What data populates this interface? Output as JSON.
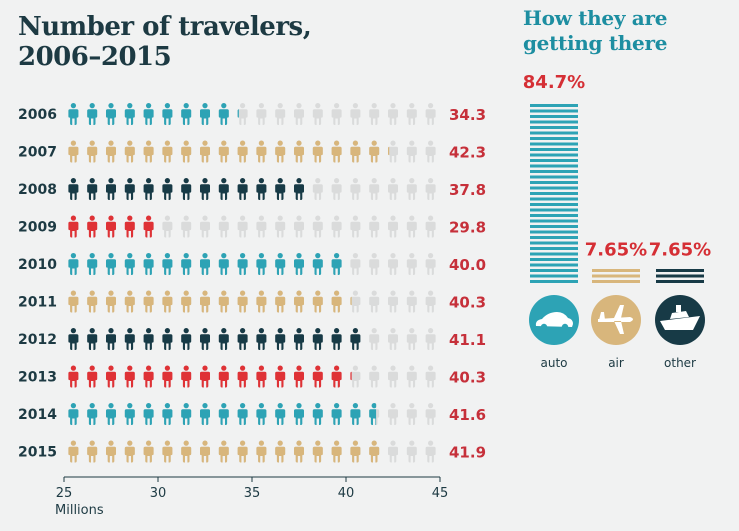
{
  "title_lines": [
    "Number of travelers,",
    "2006–2015"
  ],
  "mode_title_lines": [
    "How they are",
    "getting there"
  ],
  "colors": {
    "teal": "#2da3b5",
    "tan": "#d8b67c",
    "navy": "#173a46",
    "red": "#df3236",
    "empty": "#dadbdb",
    "value_text": "#c6303a"
  },
  "chart_data": [
    {
      "type": "bar",
      "icon": "person-icon",
      "categories": [
        "2006",
        "2007",
        "2008",
        "2009",
        "2010",
        "2011",
        "2012",
        "2013",
        "2014",
        "2015"
      ],
      "values": [
        34.3,
        42.3,
        37.8,
        29.8,
        40.0,
        40.3,
        41.1,
        40.3,
        41.6,
        41.9
      ],
      "value_labels": [
        "34.3",
        "42.3",
        "37.8",
        "29.8",
        "40.0",
        "40.3",
        "41.1",
        "40.3",
        "41.6",
        "41.9"
      ],
      "row_colors": [
        "teal",
        "tan",
        "navy",
        "red",
        "teal",
        "tan",
        "navy",
        "red",
        "teal",
        "tan"
      ],
      "xlim": [
        25,
        45
      ],
      "xticks": [
        "25",
        "30",
        "35",
        "40",
        "45"
      ],
      "xlabel": "Millions",
      "title": "Number of travelers, 2006–2015"
    },
    {
      "type": "bar",
      "title": "How they are getting there",
      "categories": [
        "auto",
        "air",
        "other"
      ],
      "values": [
        84.7,
        7.65,
        7.65
      ],
      "value_labels": [
        "84.7%",
        "7.65%",
        "7.65%"
      ],
      "colors": [
        "#2da3b5",
        "#d8b67c",
        "#173a46"
      ],
      "icons": [
        "car-icon",
        "airplane-icon",
        "ship-icon"
      ]
    }
  ]
}
